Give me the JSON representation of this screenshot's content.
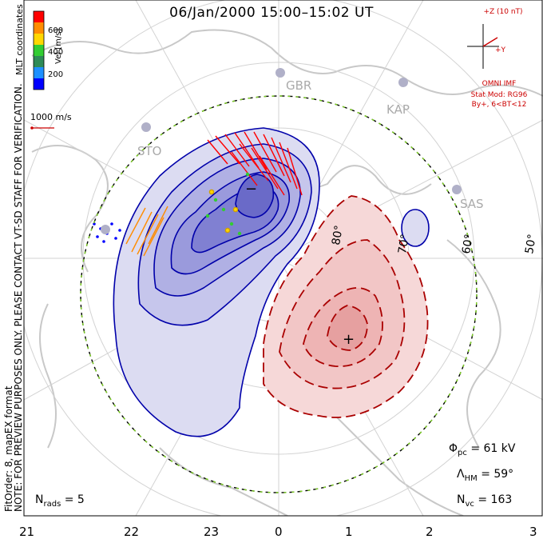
{
  "title": "06/Jan/2000 15:00–15:02 UT",
  "mlt_ticks": [
    "21",
    "22",
    "23",
    "0",
    "1",
    "2",
    "3"
  ],
  "latitude_labels": [
    "80°",
    "70°",
    "60°",
    "50°"
  ],
  "radars": [
    "GBR",
    "KAP",
    "STO",
    "SAS"
  ],
  "color_scale": {
    "axis_label": "Vel [m/s]",
    "ticks": [
      "600",
      "400",
      "200"
    ],
    "colors": [
      "#0000ff",
      "#1e90ff",
      "#32cd32",
      "#ffd700",
      "#ff8c00",
      "#ff0000"
    ]
  },
  "coordinates_note": "MLT coordinates",
  "reference_vector": "1000 m/s",
  "verification_note": "NOTE: FOR PREVIEW PURPOSES ONLY. PLEASE CONTACT VT-SD STAFF FOR VERIFICATION.",
  "fit_note": "FitOrder: 8, mapEX format",
  "imf": {
    "z_label": "+Z (10 nT)",
    "y_label": "+Y",
    "source": "OMNI IMF",
    "stat_mod": "Stat Mod: RG96",
    "condition": "By+, 6<BT<12"
  },
  "stats": {
    "phi_pc_label": "Φ",
    "phi_pc_sub": "pc",
    "phi_pc_value": "= 61 kV",
    "lambda_label": "Λ",
    "lambda_sub": "HM",
    "lambda_value": "= 59°",
    "nvc_label": "N",
    "nvc_sub": "vc",
    "nvc_value": "= 163",
    "nrads_label": "N",
    "nrads_sub": "rads",
    "nrads_value": "= 5"
  },
  "potential_markers": [
    "−",
    "+"
  ],
  "colors": {
    "negative_cell": "#0000aa",
    "positive_cell": "#aa0000",
    "boundary": "#7ed321",
    "imf_text": "#cc0000"
  }
}
